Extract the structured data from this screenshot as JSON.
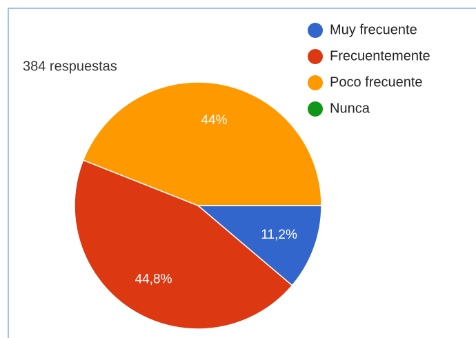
{
  "chart_data": {
    "type": "pie",
    "subtitle": "384 respuestas",
    "categories": [
      "Muy frecuente",
      "Frecuentemente",
      "Poco frecuente",
      "Nunca"
    ],
    "values": [
      11.2,
      44.8,
      44,
      0
    ],
    "value_labels": [
      "11,2%",
      "44,8%",
      "44%",
      null
    ],
    "colors": [
      "#3366cc",
      "#dc3912",
      "#ff9900",
      "#109618"
    ],
    "legend": "top-right"
  }
}
